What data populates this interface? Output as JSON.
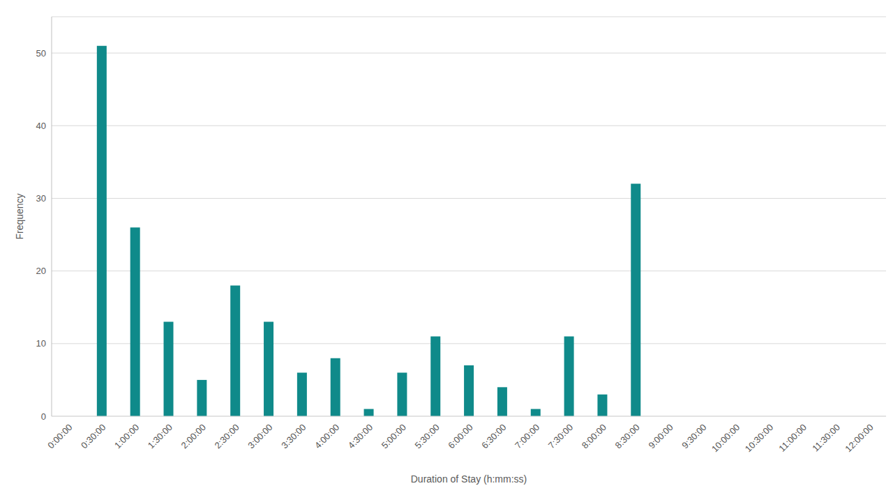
{
  "chart_data": {
    "type": "bar",
    "x_label": "Duration of Stay (h:mm:ss)",
    "y_label": "Frequency",
    "categories": [
      "0:00:00",
      "0:30:00",
      "1:00:00",
      "1:30:00",
      "2:00:00",
      "2:30:00",
      "3:00:00",
      "3:30:00",
      "4:00:00",
      "4:30:00",
      "5:00:00",
      "5:30:00",
      "6:00:00",
      "6:30:00",
      "7:00:00",
      "7:30:00",
      "8:00:00",
      "8:30:00",
      "9:00:00",
      "9:30:00",
      "10:00:00",
      "10:30:00",
      "11:00:00",
      "11:30:00",
      "12:00:00"
    ],
    "values": [
      0,
      51,
      26,
      13,
      5,
      18,
      13,
      6,
      8,
      1,
      6,
      11,
      7,
      4,
      1,
      11,
      3,
      32,
      0,
      0,
      0,
      0,
      0,
      0,
      0
    ],
    "color": "#0f8a8a",
    "ylim": [
      0,
      55
    ],
    "yticks": [
      0,
      10,
      20,
      30,
      40,
      50
    ],
    "grid": true
  }
}
